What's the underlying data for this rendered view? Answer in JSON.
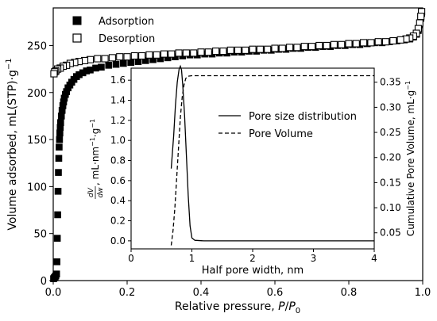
{
  "chart_data": [
    {
      "type": "scatter",
      "xlabel": "Relative pressure, ",
      "xlabel_var": "P",
      "xlabel_sep": "/",
      "xlabel_var2": "P",
      "xlabel_sub": "0",
      "ylabel": "Volume adsorbed, mL(STP)·g",
      "ylabel_sup": "−1",
      "xlim": [
        0,
        1.0
      ],
      "ylim": [
        0,
        290
      ],
      "xticks": [
        0.0,
        0.2,
        0.4,
        0.6,
        0.8,
        1.0
      ],
      "xtick_labels": [
        "0.0",
        "0.2",
        "0.4",
        "0.6",
        "0.8",
        "1.0"
      ],
      "yticks": [
        0,
        50,
        100,
        150,
        200,
        250
      ],
      "ytick_labels": [
        "0",
        "50",
        "100",
        "150",
        "200",
        "250"
      ],
      "legend_position": "top-left",
      "series": [
        {
          "name": "Adsorption",
          "marker": "filled-square",
          "color": "#000000",
          "points": [
            [
              0.001,
              2
            ],
            [
              0.003,
              3
            ],
            [
              0.005,
              4
            ],
            [
              0.007,
              5
            ],
            [
              0.009,
              7
            ],
            [
              0.01,
              20
            ],
            [
              0.011,
              45
            ],
            [
              0.012,
              70
            ],
            [
              0.013,
              95
            ],
            [
              0.014,
              115
            ],
            [
              0.015,
              130
            ],
            [
              0.016,
              142
            ],
            [
              0.017,
              150
            ],
            [
              0.018,
              157
            ],
            [
              0.019,
              163
            ],
            [
              0.02,
              168
            ],
            [
              0.022,
              175
            ],
            [
              0.024,
              181
            ],
            [
              0.026,
              186
            ],
            [
              0.028,
              190
            ],
            [
              0.03,
              194
            ],
            [
              0.033,
              198
            ],
            [
              0.036,
              201
            ],
            [
              0.04,
              205
            ],
            [
              0.045,
              208
            ],
            [
              0.05,
              211
            ],
            [
              0.056,
              214
            ],
            [
              0.063,
              217
            ],
            [
              0.07,
              219
            ],
            [
              0.08,
              221
            ],
            [
              0.09,
              223
            ],
            [
              0.1,
              224
            ],
            [
              0.115,
              226
            ],
            [
              0.13,
              227
            ],
            [
              0.15,
              229
            ],
            [
              0.17,
              230
            ],
            [
              0.19,
              231
            ],
            [
              0.21,
              232
            ],
            [
              0.23,
              233
            ],
            [
              0.25,
              234
            ],
            [
              0.27,
              235
            ],
            [
              0.29,
              236
            ],
            [
              0.31,
              237
            ],
            [
              0.33,
              238
            ],
            [
              0.35,
              239
            ],
            [
              0.37,
              240
            ],
            [
              0.39,
              240
            ],
            [
              0.41,
              241
            ],
            [
              0.43,
              241
            ],
            [
              0.45,
              242
            ],
            [
              0.47,
              242
            ],
            [
              0.49,
              243
            ],
            [
              0.51,
              243
            ],
            [
              0.53,
              244
            ],
            [
              0.55,
              244
            ],
            [
              0.57,
              245
            ],
            [
              0.59,
              245
            ],
            [
              0.61,
              246
            ],
            [
              0.63,
              246
            ],
            [
              0.65,
              247
            ],
            [
              0.67,
              247
            ],
            [
              0.69,
              248
            ],
            [
              0.71,
              248
            ],
            [
              0.73,
              249
            ],
            [
              0.75,
              249
            ],
            [
              0.77,
              250
            ],
            [
              0.79,
              250
            ],
            [
              0.81,
              251
            ],
            [
              0.83,
              251
            ],
            [
              0.85,
              252
            ],
            [
              0.87,
              253
            ],
            [
              0.89,
              253
            ],
            [
              0.91,
              254
            ],
            [
              0.93,
              255
            ],
            [
              0.95,
              256
            ],
            [
              0.965,
              257
            ],
            [
              0.975,
              259
            ],
            [
              0.983,
              262
            ],
            [
              0.988,
              266
            ],
            [
              0.992,
              272
            ],
            [
              0.995,
              279
            ],
            [
              0.997,
              284
            ]
          ]
        },
        {
          "name": "Desorption",
          "marker": "hollow-square",
          "color": "#000000",
          "points": [
            [
              0.997,
              286
            ],
            [
              0.995,
              281
            ],
            [
              0.992,
              274
            ],
            [
              0.988,
              268
            ],
            [
              0.983,
              263
            ],
            [
              0.975,
              260
            ],
            [
              0.965,
              258
            ],
            [
              0.955,
              257
            ],
            [
              0.94,
              256
            ],
            [
              0.92,
              255
            ],
            [
              0.9,
              254
            ],
            [
              0.88,
              254
            ],
            [
              0.86,
              253
            ],
            [
              0.84,
              253
            ],
            [
              0.82,
              252
            ],
            [
              0.8,
              252
            ],
            [
              0.78,
              251
            ],
            [
              0.76,
              251
            ],
            [
              0.74,
              250
            ],
            [
              0.72,
              250
            ],
            [
              0.7,
              249
            ],
            [
              0.68,
              249
            ],
            [
              0.66,
              248
            ],
            [
              0.64,
              248
            ],
            [
              0.62,
              247
            ],
            [
              0.6,
              247
            ],
            [
              0.58,
              246
            ],
            [
              0.56,
              246
            ],
            [
              0.54,
              246
            ],
            [
              0.52,
              245
            ],
            [
              0.5,
              245
            ],
            [
              0.48,
              245
            ],
            [
              0.46,
              244
            ],
            [
              0.44,
              244
            ],
            [
              0.42,
              243
            ],
            [
              0.4,
              243
            ],
            [
              0.38,
              242
            ],
            [
              0.36,
              242
            ],
            [
              0.34,
              242
            ],
            [
              0.32,
              241
            ],
            [
              0.3,
              241
            ],
            [
              0.28,
              240
            ],
            [
              0.26,
              240
            ],
            [
              0.24,
              239
            ],
            [
              0.22,
              239
            ],
            [
              0.2,
              238
            ],
            [
              0.18,
              238
            ],
            [
              0.16,
              237
            ],
            [
              0.14,
              236
            ],
            [
              0.12,
              236
            ],
            [
              0.1,
              235
            ],
            [
              0.085,
              234
            ],
            [
              0.07,
              233
            ],
            [
              0.058,
              232
            ],
            [
              0.046,
              231
            ],
            [
              0.036,
              229
            ],
            [
              0.027,
              228
            ],
            [
              0.019,
              226
            ],
            [
              0.012,
              225
            ],
            [
              0.007,
              223
            ],
            [
              0.004,
              222
            ],
            [
              0.002,
              220
            ]
          ]
        }
      ]
    },
    {
      "type": "line",
      "placement": "inset",
      "xlabel": "Half pore width, nm",
      "ylabel_frac_num": "dV",
      "ylabel_frac_den": "dw",
      "ylabel": ", mL·nm",
      "ylabel_sup1": "−1",
      "ylabel_mid": "·g",
      "ylabel_sup2": "−1",
      "y2label": "Cumulative Pore Volume, mL·g",
      "y2label_sup": "−1",
      "xlim": [
        0,
        4
      ],
      "ylim": [
        -0.08,
        1.72
      ],
      "y2lim": [
        0.018,
        0.378
      ],
      "xticks": [
        0,
        1,
        2,
        3,
        4
      ],
      "xtick_labels": [
        "0",
        "1",
        "2",
        "3",
        "4"
      ],
      "yticks": [
        0.0,
        0.2,
        0.4,
        0.6,
        0.8,
        1.0,
        1.2,
        1.4,
        1.6
      ],
      "ytick_labels": [
        "0.0",
        "0.2",
        "0.4",
        "0.6",
        "0.8",
        "1.0",
        "1.2",
        "1.4",
        "1.6"
      ],
      "y2ticks": [
        0.05,
        0.1,
        0.15,
        0.2,
        0.25,
        0.3,
        0.35
      ],
      "y2tick_labels": [
        "0.05",
        "0.10",
        "0.15",
        "0.20",
        "0.25",
        "0.30",
        "0.35"
      ],
      "legend_position": "right",
      "series": [
        {
          "name": "Pore size distribution",
          "axis": "left",
          "style": "solid",
          "color": "#000000",
          "points": [
            [
              0.66,
              0.72
            ],
            [
              0.7,
              1.05
            ],
            [
              0.73,
              1.35
            ],
            [
              0.76,
              1.58
            ],
            [
              0.79,
              1.71
            ],
            [
              0.81,
              1.74
            ],
            [
              0.83,
              1.7
            ],
            [
              0.85,
              1.55
            ],
            [
              0.88,
              1.25
            ],
            [
              0.91,
              0.85
            ],
            [
              0.94,
              0.45
            ],
            [
              0.97,
              0.15
            ],
            [
              1.0,
              0.03
            ],
            [
              1.05,
              0.005
            ],
            [
              1.2,
              0.0
            ],
            [
              2.0,
              0.0
            ],
            [
              3.0,
              0.0
            ],
            [
              4.0,
              0.0
            ]
          ]
        },
        {
          "name": "Pore Volume",
          "axis": "right",
          "style": "dashed",
          "color": "#000000",
          "points": [
            [
              0.66,
              0.025
            ],
            [
              0.69,
              0.055
            ],
            [
              0.72,
              0.1
            ],
            [
              0.75,
              0.16
            ],
            [
              0.78,
              0.22
            ],
            [
              0.81,
              0.28
            ],
            [
              0.84,
              0.32
            ],
            [
              0.87,
              0.345
            ],
            [
              0.9,
              0.358
            ],
            [
              0.94,
              0.362
            ],
            [
              1.0,
              0.363
            ],
            [
              1.5,
              0.363
            ],
            [
              2.0,
              0.363
            ],
            [
              3.0,
              0.363
            ],
            [
              4.0,
              0.363
            ]
          ]
        }
      ]
    }
  ]
}
